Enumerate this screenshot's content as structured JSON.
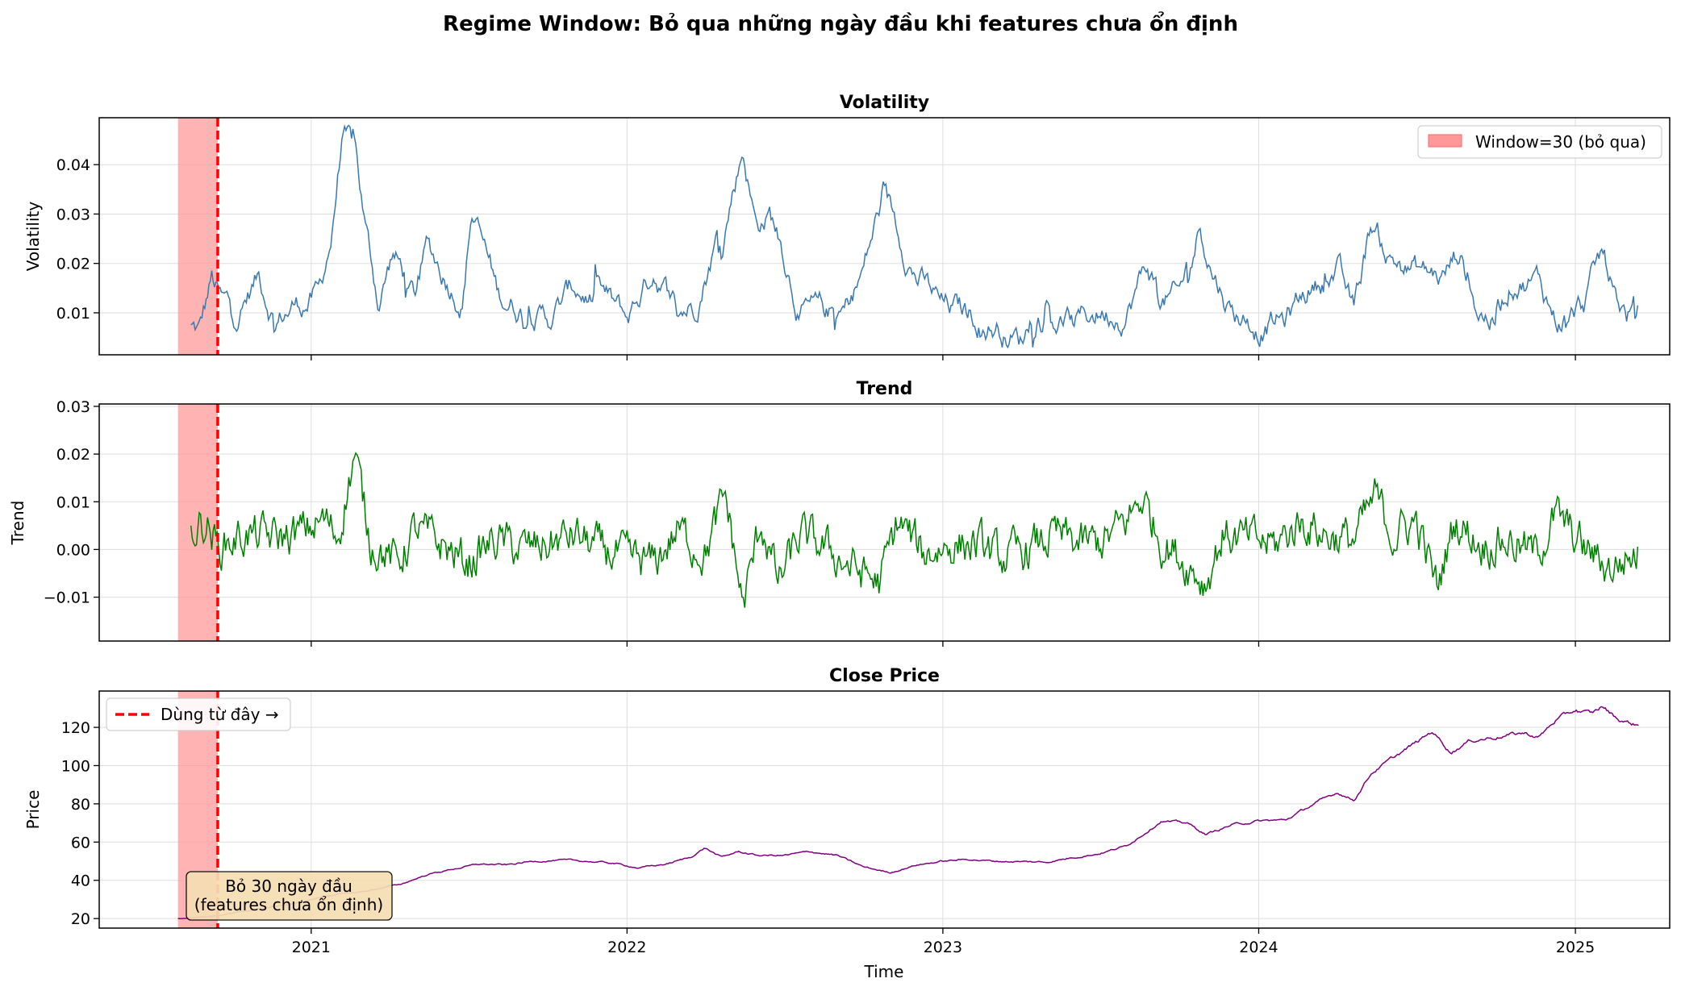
{
  "chart_data": {
    "type": "line",
    "title": "Regime Window: Bỏ qua những ngày đầu khi features chưa ổn định",
    "xlabel": "Time",
    "x_ticks": [
      "2021",
      "2022",
      "2023",
      "2024",
      "2025"
    ],
    "x_range": [
      "2020-05-01",
      "2025-04-20"
    ],
    "date_range": [
      "2020-07-31",
      "2025-03-15"
    ],
    "window": {
      "start": "2020-07-31",
      "end": "2020-09-15",
      "days": 30,
      "color": "#ff9999",
      "line_color": "#ff0000"
    },
    "legend_window": "Window=30 (bỏ qua)",
    "legend_line": "Dùng từ đây →",
    "annotation": "Bỏ 30 ngày đầu\n(features chưa ổn định)",
    "panels": [
      {
        "title": "Volatility",
        "ylabel": "Volatility",
        "color": "#3a78b0",
        "ylim": [
          0.0015,
          0.0495
        ],
        "yticks": [
          "0.01",
          "0.02",
          "0.03",
          "0.04"
        ],
        "ytick_values": [
          0.01,
          0.02,
          0.03,
          0.04
        ],
        "legend": "top-right",
        "keypoints": [
          [
            "2020-08-15",
            0.007
          ],
          [
            "2020-08-25",
            0.006
          ],
          [
            "2020-09-08",
            0.0165
          ],
          [
            "2020-09-20",
            0.0115
          ],
          [
            "2020-10-10",
            0.0105
          ],
          [
            "2020-11-01",
            0.0175
          ],
          [
            "2020-11-20",
            0.0095
          ],
          [
            "2020-12-10",
            0.0115
          ],
          [
            "2021-01-10",
            0.0135
          ],
          [
            "2021-01-25",
            0.026
          ],
          [
            "2021-02-05",
            0.045
          ],
          [
            "2021-02-20",
            0.043
          ],
          [
            "2021-03-05",
            0.026
          ],
          [
            "2021-03-20",
            0.012
          ],
          [
            "2021-04-05",
            0.022
          ],
          [
            "2021-05-01",
            0.014
          ],
          [
            "2021-05-15",
            0.023
          ],
          [
            "2021-06-05",
            0.0175
          ],
          [
            "2021-06-25",
            0.013
          ],
          [
            "2021-07-05",
            0.031
          ],
          [
            "2021-07-20",
            0.023
          ],
          [
            "2021-08-05",
            0.0135
          ],
          [
            "2021-09-01",
            0.011
          ],
          [
            "2021-10-01",
            0.0085
          ],
          [
            "2021-11-01",
            0.015
          ],
          [
            "2021-12-01",
            0.0125
          ],
          [
            "2022-01-01",
            0.0085
          ],
          [
            "2022-02-01",
            0.019
          ],
          [
            "2022-03-01",
            0.011
          ],
          [
            "2022-03-20",
            0.012
          ],
          [
            "2022-04-10",
            0.023
          ],
          [
            "2022-04-25",
            0.031
          ],
          [
            "2022-05-15",
            0.044
          ],
          [
            "2022-05-30",
            0.028
          ],
          [
            "2022-06-15",
            0.03
          ],
          [
            "2022-07-01",
            0.022
          ],
          [
            "2022-07-20",
            0.0105
          ],
          [
            "2022-08-15",
            0.0095
          ],
          [
            "2022-09-10",
            0.0105
          ],
          [
            "2022-10-01",
            0.0185
          ],
          [
            "2022-10-20",
            0.031
          ],
          [
            "2022-11-05",
            0.028
          ],
          [
            "2022-12-01",
            0.018
          ],
          [
            "2023-01-01",
            0.011
          ],
          [
            "2023-02-15",
            0.009
          ],
          [
            "2023-03-15",
            0.0065
          ],
          [
            "2023-04-01",
            0.0045
          ],
          [
            "2023-04-20",
            0.011
          ],
          [
            "2023-06-01",
            0.0075
          ],
          [
            "2023-07-01",
            0.0105
          ],
          [
            "2023-08-01",
            0.0105
          ],
          [
            "2023-08-25",
            0.0195
          ],
          [
            "2023-09-10",
            0.0135
          ],
          [
            "2023-10-01",
            0.0125
          ],
          [
            "2023-10-25",
            0.0285
          ],
          [
            "2023-11-10",
            0.0185
          ],
          [
            "2023-12-01",
            0.0105
          ],
          [
            "2024-01-01",
            0.0075
          ],
          [
            "2024-02-01",
            0.0085
          ],
          [
            "2024-03-01",
            0.0155
          ],
          [
            "2024-04-01",
            0.0185
          ],
          [
            "2024-04-20",
            0.0095
          ],
          [
            "2024-05-10",
            0.028
          ],
          [
            "2024-06-01",
            0.021
          ],
          [
            "2024-07-01",
            0.0185
          ],
          [
            "2024-08-01",
            0.017
          ],
          [
            "2024-08-20",
            0.0225
          ],
          [
            "2024-09-10",
            0.0105
          ],
          [
            "2024-10-01",
            0.0085
          ],
          [
            "2024-10-20",
            0.017
          ],
          [
            "2024-11-20",
            0.0165
          ],
          [
            "2024-12-10",
            0.0085
          ],
          [
            "2025-01-10",
            0.0115
          ],
          [
            "2025-02-01",
            0.0215
          ],
          [
            "2025-02-15",
            0.014
          ],
          [
            "2025-03-01",
            0.0095
          ],
          [
            "2025-03-15",
            0.0112
          ]
        ]
      },
      {
        "title": "Trend",
        "ylabel": "Trend",
        "color": "#008000",
        "ylim": [
          -0.0192,
          0.0305
        ],
        "yticks": [
          "−0.01",
          "0.00",
          "0.01",
          "0.02",
          "0.03"
        ],
        "ytick_values": [
          -0.01,
          0.0,
          0.01,
          0.02,
          0.03
        ],
        "keypoints": [
          [
            "2020-08-15",
            0.004
          ],
          [
            "2020-09-01",
            0.006
          ],
          [
            "2020-09-15",
            0.0005
          ],
          [
            "2020-10-15",
            0.003
          ],
          [
            "2020-11-15",
            0.0025
          ],
          [
            "2020-12-15",
            0.003
          ],
          [
            "2021-01-15",
            0.006
          ],
          [
            "2021-02-01",
            0.003
          ],
          [
            "2021-02-20",
            0.02
          ],
          [
            "2021-03-10",
            0.002
          ],
          [
            "2021-04-10",
            -0.003
          ],
          [
            "2021-05-01",
            0.004
          ],
          [
            "2021-06-01",
            0.001
          ],
          [
            "2021-07-01",
            -0.003
          ],
          [
            "2021-08-01",
            0.002
          ],
          [
            "2021-09-01",
            0.0
          ],
          [
            "2021-10-01",
            0.001
          ],
          [
            "2021-11-01",
            0.003
          ],
          [
            "2021-12-01",
            0.0
          ],
          [
            "2022-01-01",
            -0.002
          ],
          [
            "2022-02-01",
            -0.003
          ],
          [
            "2022-03-01",
            0.004
          ],
          [
            "2022-04-01",
            -0.001
          ],
          [
            "2022-04-25",
            0.011
          ],
          [
            "2022-05-15",
            -0.012
          ],
          [
            "2022-06-05",
            0.006
          ],
          [
            "2022-06-25",
            -0.007
          ],
          [
            "2022-07-20",
            0.003
          ],
          [
            "2022-08-20",
            0.0
          ],
          [
            "2022-09-20",
            -0.004
          ],
          [
            "2022-10-20",
            -0.007
          ],
          [
            "2022-11-10",
            0.006
          ],
          [
            "2022-12-10",
            -0.001
          ],
          [
            "2023-01-10",
            0.001
          ],
          [
            "2023-02-10",
            0.001
          ],
          [
            "2023-03-10",
            -0.002
          ],
          [
            "2023-04-10",
            0.0
          ],
          [
            "2023-05-10",
            0.003
          ],
          [
            "2023-06-10",
            0.001
          ],
          [
            "2023-07-10",
            0.002
          ],
          [
            "2023-08-01",
            0.006
          ],
          [
            "2023-08-20",
            0.011
          ],
          [
            "2023-09-10",
            0.002
          ],
          [
            "2023-10-10",
            -0.003
          ],
          [
            "2023-11-01",
            -0.007
          ],
          [
            "2023-11-20",
            0.003
          ],
          [
            "2023-12-20",
            0.002
          ],
          [
            "2024-01-20",
            0.001
          ],
          [
            "2024-02-20",
            0.006
          ],
          [
            "2024-03-20",
            0.003
          ],
          [
            "2024-04-20",
            0.002
          ],
          [
            "2024-05-15",
            0.011
          ],
          [
            "2024-06-05",
            0.003
          ],
          [
            "2024-07-01",
            0.006
          ],
          [
            "2024-07-25",
            -0.008
          ],
          [
            "2024-08-15",
            0.006
          ],
          [
            "2024-09-15",
            0.001
          ],
          [
            "2024-10-15",
            0.002
          ],
          [
            "2024-11-15",
            -0.001
          ],
          [
            "2024-12-10",
            0.007
          ],
          [
            "2025-01-10",
            0.0005
          ],
          [
            "2025-02-10",
            -0.004
          ],
          [
            "2025-03-15",
            -0.0005
          ]
        ]
      },
      {
        "title": "Close Price",
        "ylabel": "Price",
        "color": "#800080",
        "ylim": [
          15,
          139
        ],
        "yticks": [
          "20",
          "40",
          "60",
          "80",
          "100",
          "120"
        ],
        "ytick_values": [
          20,
          40,
          60,
          80,
          100,
          120
        ],
        "legend": "top-left",
        "keypoints": [
          [
            "2020-07-31",
            20.0
          ],
          [
            "2020-09-15",
            21.5
          ],
          [
            "2020-11-01",
            25.0
          ],
          [
            "2020-12-15",
            28.0
          ],
          [
            "2021-01-20",
            32.0
          ],
          [
            "2021-03-01",
            34.0
          ],
          [
            "2021-04-15",
            38.0
          ],
          [
            "2021-05-15",
            43.0
          ],
          [
            "2021-06-15",
            46.0
          ],
          [
            "2021-07-15",
            48.5
          ],
          [
            "2021-08-15",
            48.0
          ],
          [
            "2021-09-15",
            50.0
          ],
          [
            "2021-10-15",
            50.5
          ],
          [
            "2021-11-15",
            50.0
          ],
          [
            "2021-12-15",
            49.0
          ],
          [
            "2022-01-15",
            46.5
          ],
          [
            "2022-02-15",
            48.5
          ],
          [
            "2022-03-15",
            52.0
          ],
          [
            "2022-04-01",
            57.0
          ],
          [
            "2022-04-20",
            52.0
          ],
          [
            "2022-05-10",
            55.0
          ],
          [
            "2022-06-01",
            53.0
          ],
          [
            "2022-07-01",
            53.0
          ],
          [
            "2022-08-01",
            55.0
          ],
          [
            "2022-09-01",
            53.0
          ],
          [
            "2022-10-01",
            47.0
          ],
          [
            "2022-11-01",
            44.0
          ],
          [
            "2022-12-01",
            48.0
          ],
          [
            "2023-01-01",
            50.0
          ],
          [
            "2023-02-01",
            51.0
          ],
          [
            "2023-03-01",
            50.0
          ],
          [
            "2023-05-01",
            49.5
          ],
          [
            "2023-06-01",
            52.0
          ],
          [
            "2023-07-01",
            54.0
          ],
          [
            "2023-08-01",
            58.0
          ],
          [
            "2023-08-20",
            64.0
          ],
          [
            "2023-09-10",
            71.0
          ],
          [
            "2023-10-10",
            70.0
          ],
          [
            "2023-11-01",
            64.0
          ],
          [
            "2023-12-01",
            69.0
          ],
          [
            "2024-01-01",
            71.0
          ],
          [
            "2024-02-01",
            71.5
          ],
          [
            "2024-03-01",
            79.0
          ],
          [
            "2024-04-01",
            86.0
          ],
          [
            "2024-04-20",
            82.0
          ],
          [
            "2024-05-10",
            96.0
          ],
          [
            "2024-06-01",
            103.0
          ],
          [
            "2024-07-01",
            112.0
          ],
          [
            "2024-07-20",
            118.0
          ],
          [
            "2024-08-10",
            107.0
          ],
          [
            "2024-09-01",
            113.0
          ],
          [
            "2024-10-01",
            115.0
          ],
          [
            "2024-11-01",
            117.0
          ],
          [
            "2024-11-20",
            115.0
          ],
          [
            "2024-12-10",
            124.0
          ],
          [
            "2025-01-01",
            129.0
          ],
          [
            "2025-01-20",
            127.0
          ],
          [
            "2025-02-01",
            131.0
          ],
          [
            "2025-02-20",
            124.0
          ],
          [
            "2025-03-15",
            121.0
          ]
        ]
      }
    ]
  }
}
